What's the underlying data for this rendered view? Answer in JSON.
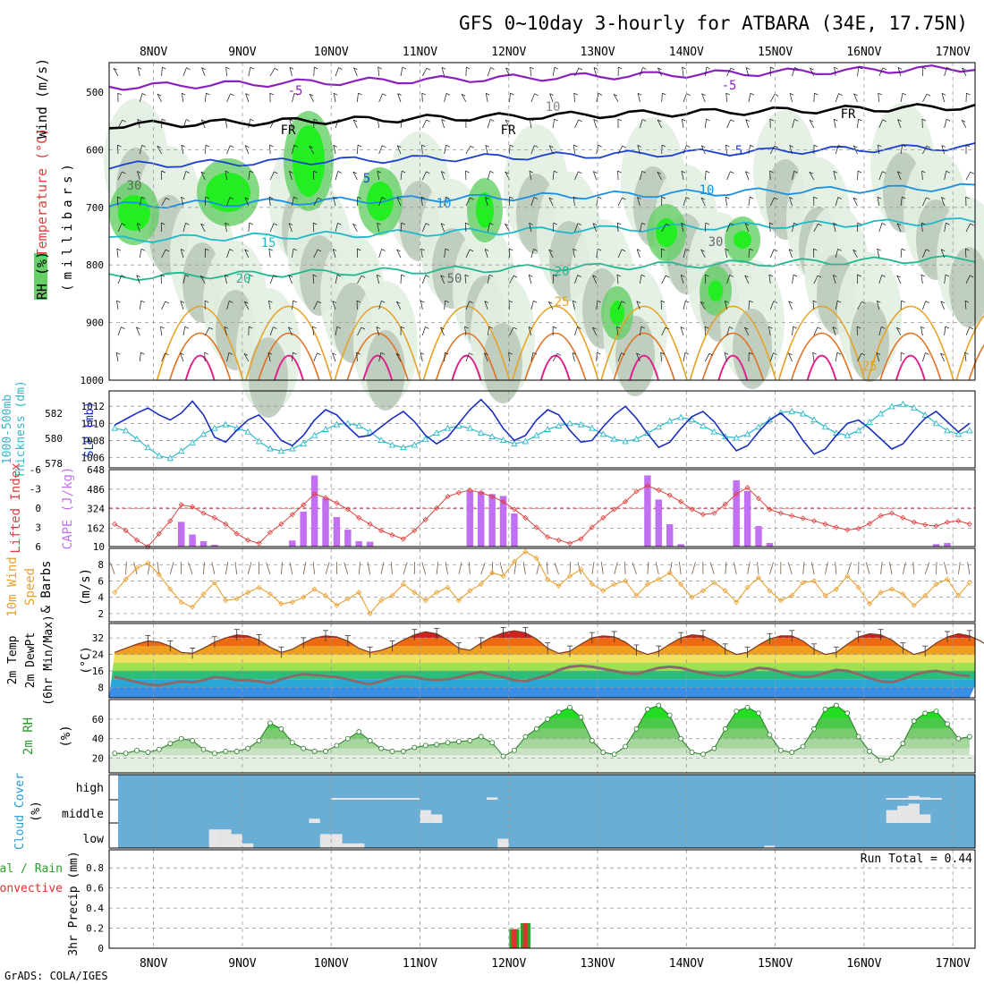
{
  "title": "GFS 0~10day 3-hourly for ATBARA (34E, 17.75N)",
  "footer": "GrADS: COLA/IGES",
  "days": [
    "8NOV",
    "9NOV",
    "10NOV",
    "11NOV",
    "12NOV",
    "13NOV",
    "14NOV",
    "15NOV",
    "16NOV",
    "17NOV"
  ],
  "colors": {
    "rh_light": "#e3efe3",
    "rh_mid": "#b9c8b9",
    "rh_dark": "#8fa58f",
    "rh_green": "#66d066",
    "rh_bright": "#22ee22",
    "thickness": "#2fb8c8",
    "slp": "#1a2fbf",
    "cape": "#c070f0",
    "lifted": "#e04040",
    "wind": "#e8a030",
    "cloud_bg": "#6aaed6",
    "cloud_fill": "#e6e6e6",
    "precip_total": "#22aa22",
    "precip_conv": "#e03030"
  },
  "panels": {
    "upper": {
      "labels": [
        "Wind (m/s)",
        "Temperature (°C)",
        "RH (%)"
      ],
      "ylabel": "(millibars)",
      "levels": [
        500,
        600,
        700,
        800,
        900,
        1000
      ],
      "contour_labels": [
        "-5",
        "-5",
        "FR",
        "FR",
        "FR",
        "5",
        "5",
        "10",
        "10",
        "15",
        "20",
        "20",
        "25",
        "25",
        "30",
        "30",
        "50",
        "10"
      ]
    },
    "slp": {
      "labels": [
        "1000-500mb",
        "Thickness (dm)",
        "SLP (mb)"
      ],
      "left_ticks": [
        "582",
        "580",
        "578"
      ],
      "right_ticks": [
        "1012",
        "1010",
        "1008",
        "1006"
      ]
    },
    "cape": {
      "labels": [
        "Lifted Index",
        "CAPE (J/kg)"
      ],
      "left_ticks": [
        "-6",
        "-3",
        "0",
        "3",
        "6"
      ],
      "right_ticks": [
        "648",
        "486",
        "324",
        "162",
        "10"
      ]
    },
    "wind": {
      "labels": [
        "10m Wind",
        "Speed",
        "& Barbs",
        "(m/s)"
      ],
      "ticks": [
        "8",
        "6",
        "4",
        "2"
      ]
    },
    "temp": {
      "labels": [
        "2m Temp",
        "2m DewPt",
        "(6hr Min/Max)",
        "(°C)"
      ],
      "ticks": [
        "32",
        "24",
        "16",
        "8"
      ]
    },
    "rh2m": {
      "labels": [
        "2m RH",
        "(%)"
      ],
      "ticks": [
        "60",
        "40",
        "20"
      ]
    },
    "cloud": {
      "labels": [
        "Cloud Cover",
        "(%)"
      ],
      "ticks": [
        "high",
        "middle",
        "low"
      ]
    },
    "precip": {
      "labels": [
        "3hr Precip (mm)",
        "Total / Rain",
        "Convective"
      ],
      "ticks": [
        "0.8",
        "0.6",
        "0.4",
        "0.2",
        "0"
      ],
      "run_total_label": "Run Total = 0.44"
    }
  },
  "chart_data": {
    "type": "meteogram",
    "x_unit": "3-hourly steps from start of 8NOV (UTC, approx)",
    "day_tick_steps": [
      4,
      12,
      20,
      28,
      36,
      44,
      52,
      60,
      68,
      76
    ],
    "thickness_dm": [
      580.5,
      580.3,
      579.6,
      578.9,
      578.2,
      578.0,
      578.6,
      579.3,
      580.0,
      580.5,
      580.8,
      580.5,
      580.2,
      579.4,
      578.8,
      578.6,
      578.8,
      579.2,
      579.9,
      580.4,
      580.8,
      580.9,
      580.7,
      580.2,
      579.5,
      579.1,
      578.9,
      579.1,
      579.6,
      580.1,
      580.5,
      580.7,
      580.5,
      580.1,
      579.8,
      579.5,
      579.2,
      579.4,
      579.9,
      580.4,
      580.7,
      580.9,
      580.8,
      580.5,
      580.0,
      579.6,
      579.4,
      579.6,
      580.1,
      580.6,
      581.1,
      581.4,
      581.2,
      580.7,
      580.2,
      579.8,
      579.7,
      580.0,
      580.6,
      581.2,
      581.8,
      581.9,
      581.7,
      581.2,
      580.6,
      580.1,
      579.9,
      580.3,
      581.0,
      581.7,
      582.3,
      582.5,
      582.2,
      581.6,
      580.9,
      580.3,
      580.0,
      580.3
    ],
    "slp_mb": [
      1009.8,
      1010.5,
      1011.2,
      1011.8,
      1011.0,
      1010.4,
      1011.2,
      1012.6,
      1011.0,
      1008.4,
      1007.8,
      1009.2,
      1010.4,
      1011.0,
      1009.6,
      1008.0,
      1007.4,
      1008.6,
      1010.4,
      1011.6,
      1011.0,
      1009.6,
      1008.4,
      1008.6,
      1009.6,
      1010.6,
      1011.4,
      1010.2,
      1008.6,
      1007.6,
      1008.4,
      1010.0,
      1011.6,
      1012.8,
      1011.4,
      1009.4,
      1008.0,
      1008.6,
      1010.4,
      1011.6,
      1011.0,
      1009.2,
      1007.8,
      1008.0,
      1009.6,
      1011.0,
      1012.0,
      1010.6,
      1008.8,
      1007.2,
      1007.8,
      1009.4,
      1010.8,
      1011.4,
      1010.2,
      1008.4,
      1006.8,
      1007.4,
      1009.0,
      1010.4,
      1011.2,
      1010.0,
      1008.0,
      1006.4,
      1007.0,
      1008.6,
      1010.0,
      1010.4,
      1009.4,
      1008.2,
      1007.0,
      1007.6,
      1009.2,
      1010.6,
      1011.4,
      1010.2,
      1009.0,
      1010.0
    ],
    "cape_jkg": [
      0,
      0,
      0,
      0,
      0,
      0,
      215,
      110,
      55,
      25,
      0,
      0,
      0,
      0,
      0,
      0,
      60,
      300,
      600,
      410,
      255,
      150,
      55,
      50,
      0,
      0,
      0,
      0,
      0,
      0,
      0,
      0,
      470,
      465,
      445,
      430,
      285,
      0,
      0,
      0,
      0,
      0,
      0,
      0,
      0,
      0,
      0,
      0,
      600,
      400,
      195,
      30,
      0,
      0,
      0,
      0,
      560,
      470,
      180,
      40,
      0,
      0,
      0,
      0,
      0,
      0,
      0,
      0,
      0,
      0,
      0,
      0,
      0,
      0,
      30,
      40,
      0,
      0
    ],
    "lifted_index": [
      2.5,
      3.5,
      5,
      6,
      4,
      2,
      -0.5,
      -0.2,
      0.8,
      1.5,
      2.5,
      4,
      5,
      5.5,
      3.8,
      2.5,
      1,
      -0.5,
      -2.2,
      -1.6,
      -0.8,
      0.2,
      1.5,
      2.5,
      3.5,
      4.2,
      4.8,
      3.5,
      1.8,
      0,
      -1.8,
      -2.4,
      -2.8,
      -2.4,
      -1.8,
      -1,
      0.2,
      1.5,
      3,
      4.5,
      5,
      5.5,
      4.8,
      3,
      1.5,
      0.2,
      -1,
      -2.6,
      -3.5,
      -2.8,
      -2,
      -1,
      0.2,
      1,
      0.8,
      -0.6,
      -2.2,
      -3.2,
      -1.5,
      0.2,
      0.8,
      1.2,
      1.6,
      2,
      2.5,
      3,
      3.4,
      3.2,
      2.4,
      1.2,
      0.8,
      1.5,
      2.2,
      2.6,
      2.8,
      2.2,
      2,
      2.5
    ],
    "wind_speed_ms": [
      4.6,
      6.2,
      7.6,
      8.2,
      6.8,
      5.0,
      3.4,
      2.8,
      4.4,
      5.8,
      3.6,
      3.8,
      4.6,
      5.2,
      4.4,
      3.2,
      3.4,
      4.0,
      5.0,
      4.2,
      3.0,
      3.8,
      4.6,
      2.0,
      3.6,
      4.2,
      5.6,
      4.6,
      3.6,
      4.6,
      5.2,
      3.6,
      4.8,
      5.6,
      7.0,
      6.6,
      8.4,
      9.6,
      8.8,
      6.2,
      5.4,
      6.6,
      7.4,
      5.6,
      4.8,
      5.6,
      6.0,
      4.2,
      5.6,
      6.2,
      7.0,
      5.6,
      4.0,
      4.8,
      5.8,
      4.8,
      3.4,
      5.2,
      6.4,
      4.8,
      3.6,
      4.2,
      5.8,
      6.0,
      4.2,
      5.0,
      6.6,
      5.2,
      3.2,
      4.6,
      5.0,
      4.4,
      3.0,
      4.2,
      5.6,
      6.2,
      4.2,
      5.8
    ],
    "temp_2m_c": [
      25,
      27,
      29,
      30.5,
      30,
      28,
      25,
      24.5,
      27,
      30,
      32,
      33.5,
      33,
      31,
      27.5,
      25,
      26.5,
      29.5,
      32,
      33,
      32.5,
      30.5,
      27,
      25,
      26,
      28,
      31,
      33.5,
      35,
      34,
      31,
      27,
      26,
      29.5,
      32.5,
      34.5,
      35.5,
      34.5,
      31.5,
      27,
      24.5,
      25.5,
      29,
      32,
      33,
      32.5,
      30,
      26,
      24,
      25.5,
      29,
      32,
      33.5,
      33,
      30.5,
      26.5,
      24,
      25,
      28.5,
      31.5,
      33,
      33,
      30.5,
      26.5,
      24,
      25,
      29,
      32.5,
      34,
      33.5,
      31,
      27,
      24,
      25.5,
      29.5,
      32.5,
      34,
      33,
      30.5,
      27
    ],
    "dewpt_2m_c": [
      13,
      12,
      10.5,
      9.5,
      9,
      10,
      11,
      10.5,
      11.5,
      13,
      12.5,
      11.5,
      11.5,
      11,
      10,
      12,
      13.5,
      14.5,
      14,
      13.5,
      13,
      12,
      10.5,
      9.5,
      11,
      12.5,
      13.5,
      13,
      12,
      11.5,
      12,
      13,
      14.5,
      15.5,
      14,
      13,
      11.5,
      11,
      12.5,
      14,
      16.5,
      18,
      18.5,
      18,
      17,
      16,
      15,
      14.5,
      16,
      17.5,
      18,
      17.5,
      16,
      15,
      14,
      13.5,
      14.5,
      16,
      17.5,
      17,
      15.5,
      14,
      13,
      13.5,
      15,
      16.5,
      16,
      14.5,
      12.5,
      11,
      10.5,
      12,
      14,
      15.5,
      16,
      15,
      14,
      13.5
    ],
    "rh_2m_pct": [
      25,
      25,
      28,
      26,
      29,
      35,
      40,
      38,
      29,
      25,
      27,
      27,
      30,
      38,
      56,
      50,
      36,
      30,
      27,
      27,
      33,
      40,
      47,
      38,
      30,
      27,
      27,
      31,
      33,
      34,
      36,
      37,
      38,
      42,
      36,
      22,
      28,
      42,
      50,
      60,
      67,
      72,
      62,
      38,
      26,
      24,
      32,
      50,
      70,
      74,
      64,
      40,
      26,
      24,
      30,
      50,
      68,
      72,
      66,
      44,
      28,
      26,
      32,
      50,
      70,
      74,
      66,
      42,
      27,
      18,
      20,
      35,
      58,
      66,
      68,
      55,
      40,
      42
    ],
    "cloud_high_pct": [
      0,
      0,
      0,
      0,
      0,
      0,
      0,
      0,
      0,
      0,
      0,
      0,
      0,
      0,
      0,
      0,
      0,
      0,
      0,
      0,
      2,
      2,
      2,
      2,
      2,
      2,
      2,
      2,
      0,
      0,
      0,
      0,
      0,
      0,
      5,
      0,
      0,
      0,
      0,
      0,
      0,
      0,
      0,
      0,
      0,
      0,
      0,
      0,
      0,
      0,
      0,
      0,
      0,
      0,
      0,
      0,
      0,
      0,
      0,
      0,
      0,
      0,
      0,
      0,
      0,
      0,
      0,
      0,
      0,
      0,
      3,
      3,
      8,
      5,
      2,
      0,
      0,
      0
    ],
    "cloud_mid_pct": [
      0,
      0,
      0,
      0,
      0,
      0,
      0,
      0,
      0,
      0,
      0,
      0,
      0,
      0,
      0,
      0,
      0,
      0,
      10,
      0,
      0,
      0,
      0,
      0,
      0,
      0,
      0,
      0,
      30,
      20,
      0,
      0,
      0,
      0,
      0,
      0,
      0,
      0,
      0,
      0,
      0,
      0,
      0,
      0,
      0,
      0,
      0,
      0,
      0,
      0,
      0,
      0,
      0,
      0,
      0,
      0,
      0,
      0,
      0,
      0,
      0,
      0,
      0,
      0,
      0,
      0,
      0,
      0,
      0,
      0,
      30,
      40,
      45,
      20,
      0,
      0,
      0,
      0
    ],
    "cloud_low_pct": [
      0,
      0,
      0,
      0,
      0,
      0,
      0,
      0,
      0,
      40,
      40,
      30,
      10,
      0,
      0,
      0,
      0,
      0,
      0,
      30,
      30,
      10,
      10,
      0,
      0,
      0,
      0,
      0,
      0,
      0,
      0,
      0,
      0,
      0,
      0,
      20,
      0,
      0,
      0,
      0,
      0,
      0,
      0,
      0,
      0,
      0,
      0,
      0,
      0,
      0,
      0,
      0,
      0,
      0,
      0,
      0,
      0,
      0,
      0,
      5,
      0,
      0,
      0,
      0,
      0,
      0,
      0,
      0,
      0,
      0,
      0,
      0,
      0,
      0,
      0,
      0,
      0,
      0
    ],
    "precip_total_mm": [
      0,
      0,
      0,
      0,
      0,
      0,
      0,
      0,
      0,
      0,
      0,
      0,
      0,
      0,
      0,
      0,
      0,
      0,
      0,
      0,
      0,
      0,
      0,
      0,
      0,
      0,
      0,
      0,
      0,
      0,
      0,
      0,
      0,
      0,
      0,
      0,
      0.19,
      0.25,
      0,
      0,
      0,
      0,
      0,
      0,
      0,
      0,
      0,
      0,
      0,
      0,
      0,
      0,
      0,
      0,
      0,
      0,
      0,
      0,
      0,
      0,
      0,
      0,
      0,
      0,
      0,
      0,
      0,
      0,
      0,
      0,
      0,
      0,
      0,
      0,
      0,
      0,
      0,
      0
    ],
    "precip_conv_mm": [
      0,
      0,
      0,
      0,
      0,
      0,
      0,
      0,
      0,
      0,
      0,
      0,
      0,
      0,
      0,
      0,
      0,
      0,
      0,
      0,
      0,
      0,
      0,
      0,
      0,
      0,
      0,
      0,
      0,
      0,
      0,
      0,
      0,
      0,
      0,
      0,
      0.19,
      0.25,
      0,
      0,
      0,
      0,
      0,
      0,
      0,
      0,
      0,
      0,
      0,
      0,
      0,
      0,
      0,
      0,
      0,
      0,
      0,
      0,
      0,
      0,
      0,
      0,
      0,
      0,
      0,
      0,
      0,
      0,
      0,
      0,
      0,
      0,
      0,
      0,
      0,
      0,
      0,
      0
    ],
    "run_total_mm": 0.44
  }
}
